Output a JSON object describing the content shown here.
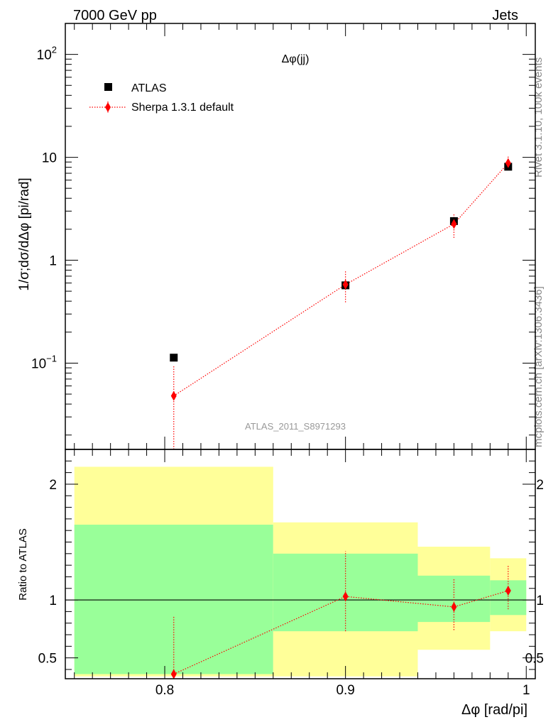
{
  "header": {
    "left": "7000 GeV pp",
    "right": "Jets"
  },
  "side_text": {
    "top": "Rivet 3.1.10,  100k events",
    "bottom": "mcplots.cern.ch [arXiv:1306.3436]"
  },
  "analysis_id": "ATLAS_2011_S8971293",
  "chart_data": [
    {
      "type": "scatter",
      "panel": "main",
      "title": "Δφ(jj)",
      "ylabel": "1/σ;dσ/dΔφ [pi/rad]",
      "xlabel": "",
      "yscale": "log",
      "ylim": [
        0.0145,
        200
      ],
      "xlim": [
        0.745,
        1.005
      ],
      "yticks": [
        {
          "value": 100,
          "label": "10",
          "sup": "2"
        },
        {
          "value": 10,
          "label": "10",
          "sup": ""
        },
        {
          "value": 1,
          "label": "1",
          "sup": ""
        },
        {
          "value": 0.1,
          "label": "10",
          "sup": "−1"
        }
      ],
      "legend_position": "top-left",
      "series": [
        {
          "name": "ATLAS",
          "marker": "square",
          "color": "#000000",
          "points": [
            {
              "x": 0.805,
              "y": 0.113
            },
            {
              "x": 0.9,
              "y": 0.57
            },
            {
              "x": 0.96,
              "y": 2.4
            },
            {
              "x": 0.99,
              "y": 8.1
            }
          ]
        },
        {
          "name": "Sherpa 1.3.1 default",
          "marker": "diamond",
          "line": "dotted",
          "color": "#ff0000",
          "points": [
            {
              "x": 0.805,
              "y": 0.048,
              "ylo": 0.005,
              "yhi": 0.095
            },
            {
              "x": 0.9,
              "y": 0.58,
              "ylo": 0.39,
              "yhi": 0.8
            },
            {
              "x": 0.96,
              "y": 2.25,
              "ylo": 1.65,
              "yhi": 2.8
            },
            {
              "x": 0.99,
              "y": 8.8,
              "ylo": 7.5,
              "yhi": 10.2
            }
          ]
        }
      ]
    },
    {
      "type": "scatter",
      "panel": "ratio",
      "title": "",
      "ylabel": "Ratio to ATLAS",
      "xlabel": "Δφ [rad/pi]",
      "ylim": [
        0.32,
        2.3
      ],
      "xlim": [
        0.745,
        1.005
      ],
      "xticks": [
        {
          "value": 0.8,
          "label": "0.8"
        },
        {
          "value": 0.9,
          "label": "0.9"
        },
        {
          "value": 1.0,
          "label": "1"
        }
      ],
      "yticks": [
        {
          "value": 2,
          "label": "2"
        },
        {
          "value": 1,
          "label": "1"
        },
        {
          "value": 0.5,
          "label": "0.5"
        }
      ],
      "reference_line": 1,
      "bands": [
        {
          "x0": 0.75,
          "x1": 0.86,
          "outer": [
            0.34,
            2.15
          ],
          "inner": [
            0.36,
            1.65
          ]
        },
        {
          "x0": 0.86,
          "x1": 0.94,
          "outer": [
            0.34,
            1.67
          ],
          "inner": [
            0.73,
            1.4
          ]
        },
        {
          "x0": 0.94,
          "x1": 0.98,
          "outer": [
            0.57,
            1.46
          ],
          "inner": [
            0.81,
            1.21
          ]
        },
        {
          "x0": 0.98,
          "x1": 1.0,
          "outer": [
            0.73,
            1.36
          ],
          "inner": [
            0.87,
            1.17
          ]
        }
      ],
      "band_colors": {
        "outer": "#ffff99",
        "inner": "#99ff99"
      },
      "series": [
        {
          "name": "Sherpa 1.3.1 default",
          "marker": "diamond",
          "line": "dotted",
          "color": "#ff0000",
          "points": [
            {
              "x": 0.805,
              "y": 0.36,
              "ylo": 0.33,
              "yhi": 0.86
            },
            {
              "x": 0.9,
              "y": 1.03,
              "ylo": 0.73,
              "yhi": 1.42
            },
            {
              "x": 0.96,
              "y": 0.94,
              "ylo": 0.74,
              "yhi": 1.18
            },
            {
              "x": 0.99,
              "y": 1.08,
              "ylo": 0.92,
              "yhi": 1.3
            }
          ]
        }
      ]
    }
  ]
}
